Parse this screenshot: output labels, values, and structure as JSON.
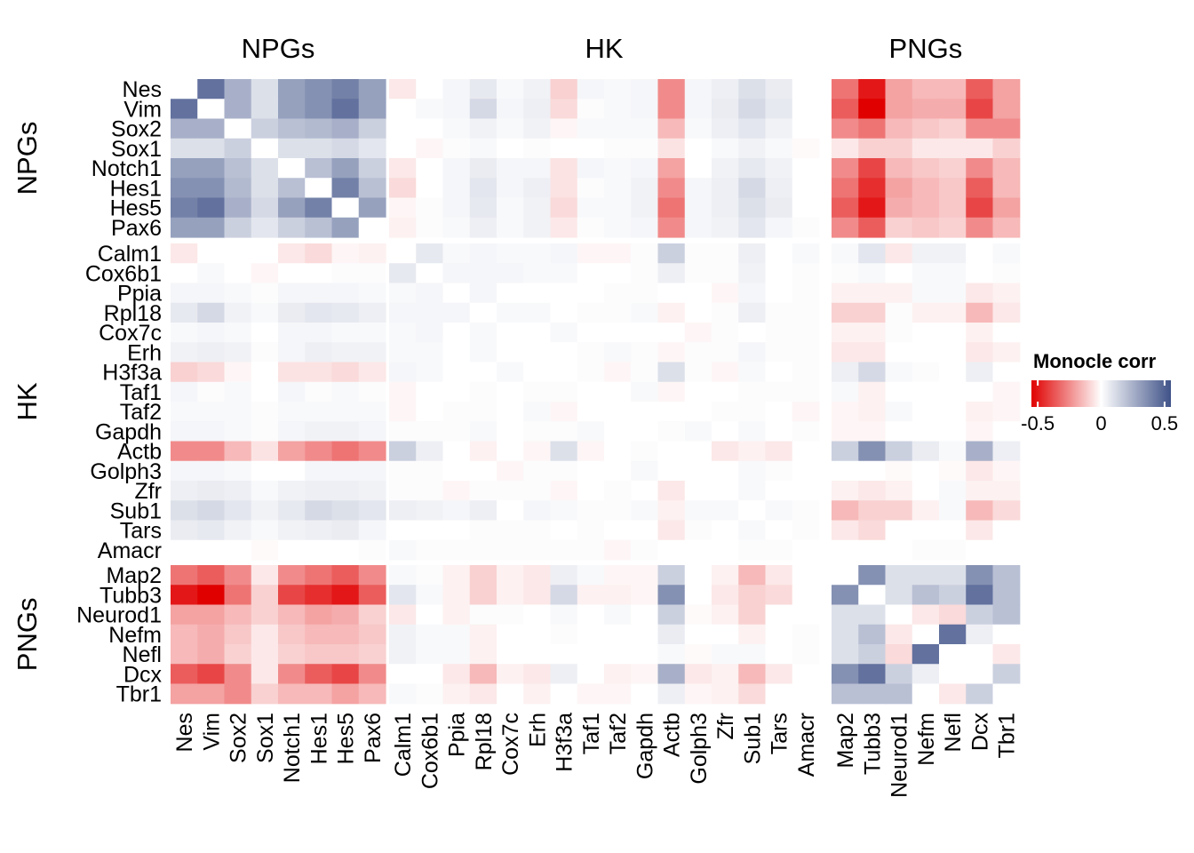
{
  "chart_data": {
    "type": "heatmap",
    "title": "",
    "genes": [
      "Nes",
      "Vim",
      "Sox2",
      "Sox1",
      "Notch1",
      "Hes1",
      "Hes5",
      "Pax6",
      "Calm1",
      "Cox6b1",
      "Ppia",
      "Rpl18",
      "Cox7c",
      "Erh",
      "H3f3a",
      "Taf1",
      "Taf2",
      "Gapdh",
      "Actb",
      "Golph3",
      "Zfr",
      "Sub1",
      "Tars",
      "Amacr",
      "Map2",
      "Tubb3",
      "Neurod1",
      "Nefm",
      "Nefl",
      "Dcx",
      "Tbr1"
    ],
    "groups": [
      {
        "name": "NPGs",
        "start": 0,
        "end": 7
      },
      {
        "name": "HK",
        "start": 8,
        "end": 23
      },
      {
        "name": "PNGs",
        "start": 24,
        "end": 30
      }
    ],
    "values": [
      [
        null,
        0.45,
        0.25,
        0.1,
        0.3,
        0.35,
        0.4,
        0.3,
        -0.05,
        0.0,
        0.03,
        0.07,
        0.02,
        0.04,
        -0.1,
        0.03,
        0.02,
        0.03,
        -0.25,
        0.03,
        0.05,
        0.1,
        0.06,
        0.0,
        -0.3,
        -0.5,
        -0.2,
        -0.15,
        -0.15,
        -0.35,
        -0.2
      ],
      [
        0.45,
        null,
        0.25,
        0.1,
        0.3,
        0.35,
        0.45,
        0.3,
        0.0,
        0.02,
        0.03,
        0.12,
        0.03,
        0.05,
        -0.08,
        0.01,
        0.02,
        0.03,
        -0.25,
        0.03,
        0.06,
        0.12,
        0.07,
        0.0,
        -0.35,
        -0.55,
        -0.2,
        -0.18,
        -0.18,
        -0.4,
        -0.2
      ],
      [
        0.25,
        0.25,
        null,
        0.15,
        0.2,
        0.22,
        0.25,
        0.15,
        0.0,
        0.0,
        0.02,
        0.04,
        0.02,
        0.04,
        -0.02,
        0.02,
        0.02,
        0.02,
        -0.15,
        0.02,
        0.05,
        0.08,
        0.04,
        0.0,
        -0.25,
        -0.3,
        -0.15,
        -0.12,
        -0.1,
        -0.25,
        -0.25
      ],
      [
        0.1,
        0.1,
        0.15,
        null,
        0.1,
        0.1,
        0.12,
        0.08,
        0.0,
        -0.02,
        0.01,
        0.02,
        0.0,
        0.01,
        0.0,
        0.0,
        0.01,
        0.01,
        -0.06,
        0.0,
        0.02,
        0.04,
        0.02,
        -0.01,
        -0.05,
        -0.1,
        -0.1,
        -0.05,
        -0.05,
        -0.05,
        -0.1
      ],
      [
        0.3,
        0.3,
        0.2,
        0.1,
        null,
        0.2,
        0.3,
        0.15,
        -0.05,
        0.0,
        0.03,
        0.06,
        0.03,
        0.03,
        -0.06,
        0.03,
        0.02,
        0.03,
        -0.2,
        0.0,
        0.04,
        0.07,
        0.04,
        0.0,
        -0.25,
        -0.4,
        -0.15,
        -0.12,
        -0.1,
        -0.25,
        -0.15
      ],
      [
        0.35,
        0.35,
        0.22,
        0.1,
        0.2,
        null,
        0.4,
        0.2,
        -0.08,
        0.0,
        0.03,
        0.08,
        0.03,
        0.05,
        -0.06,
        0.01,
        0.02,
        0.04,
        -0.25,
        0.03,
        0.05,
        0.12,
        0.05,
        0.0,
        -0.3,
        -0.45,
        -0.2,
        -0.15,
        -0.12,
        -0.35,
        -0.15
      ],
      [
        0.4,
        0.45,
        0.25,
        0.12,
        0.3,
        0.4,
        null,
        0.3,
        -0.02,
        0.01,
        0.03,
        0.07,
        0.02,
        0.04,
        -0.08,
        0.02,
        0.02,
        0.04,
        -0.3,
        0.03,
        0.05,
        0.1,
        0.06,
        0.0,
        -0.35,
        -0.5,
        -0.18,
        -0.15,
        -0.12,
        -0.4,
        -0.2
      ],
      [
        0.3,
        0.3,
        0.15,
        0.08,
        0.15,
        0.2,
        0.3,
        null,
        -0.03,
        0.01,
        0.02,
        0.05,
        0.02,
        0.04,
        -0.05,
        0.01,
        0.02,
        0.03,
        -0.25,
        0.03,
        0.04,
        0.08,
        0.03,
        0.01,
        -0.25,
        -0.35,
        -0.1,
        -0.12,
        -0.1,
        -0.25,
        -0.15
      ],
      [
        -0.05,
        0.0,
        0.0,
        0.0,
        -0.05,
        -0.08,
        -0.02,
        -0.03,
        null,
        0.07,
        0.02,
        0.03,
        0.02,
        0.02,
        0.03,
        -0.02,
        -0.02,
        0.01,
        0.15,
        0.01,
        0.01,
        0.05,
        0.0,
        0.02,
        0.02,
        0.08,
        -0.05,
        0.04,
        0.04,
        0.0,
        0.02
      ],
      [
        0.0,
        0.02,
        0.0,
        -0.02,
        0.0,
        0.0,
        0.01,
        0.01,
        0.07,
        null,
        0.03,
        0.03,
        0.03,
        0.02,
        0.02,
        0.0,
        0.0,
        0.01,
        0.05,
        0.01,
        0.01,
        0.04,
        0.0,
        0.01,
        0.01,
        0.02,
        0.0,
        0.02,
        0.02,
        0.0,
        0.01
      ],
      [
        0.03,
        0.03,
        0.02,
        0.01,
        0.03,
        0.03,
        0.03,
        0.02,
        0.02,
        0.03,
        null,
        0.03,
        0.0,
        0.0,
        0.0,
        0.0,
        0.01,
        0.01,
        0.0,
        0.0,
        -0.02,
        0.03,
        0.0,
        0.01,
        -0.03,
        -0.03,
        -0.03,
        0.02,
        0.02,
        -0.05,
        -0.03
      ],
      [
        0.07,
        0.12,
        0.04,
        0.02,
        0.06,
        0.08,
        0.07,
        0.05,
        0.03,
        0.03,
        0.03,
        null,
        0.02,
        0.02,
        0.0,
        0.01,
        0.01,
        0.02,
        -0.03,
        0.0,
        0.01,
        0.05,
        0.01,
        0.01,
        -0.1,
        -0.1,
        0.01,
        -0.03,
        -0.03,
        -0.15,
        -0.05
      ],
      [
        0.02,
        0.03,
        0.02,
        0.0,
        0.03,
        0.03,
        0.02,
        0.02,
        0.02,
        0.03,
        0.0,
        0.02,
        null,
        0.0,
        0.02,
        0.0,
        0.0,
        0.0,
        0.0,
        -0.02,
        0.01,
        0.0,
        0.01,
        0.01,
        -0.03,
        -0.03,
        0.01,
        0.0,
        0.0,
        -0.03,
        0.0
      ],
      [
        0.04,
        0.05,
        0.04,
        0.01,
        0.03,
        0.05,
        0.04,
        0.04,
        0.02,
        0.02,
        0.0,
        0.02,
        0.0,
        null,
        0.0,
        0.01,
        0.02,
        0.01,
        -0.02,
        0.01,
        0.01,
        0.03,
        0.01,
        0.01,
        -0.05,
        -0.05,
        0.0,
        0.0,
        0.0,
        -0.05,
        -0.03
      ],
      [
        -0.1,
        -0.08,
        -0.02,
        0.0,
        -0.06,
        -0.06,
        -0.08,
        -0.05,
        0.03,
        0.02,
        0.0,
        0.0,
        0.02,
        0.0,
        null,
        0.01,
        -0.02,
        0.01,
        0.1,
        0.01,
        -0.02,
        0.02,
        0.0,
        0.01,
        0.05,
        0.12,
        0.02,
        0.01,
        0.0,
        0.05,
        0.0
      ],
      [
        0.03,
        0.01,
        0.02,
        0.0,
        0.03,
        0.01,
        0.02,
        0.01,
        -0.02,
        0.0,
        0.0,
        0.01,
        0.0,
        0.01,
        0.01,
        null,
        0.0,
        0.02,
        -0.02,
        0.0,
        0.0,
        0.01,
        0.01,
        0.01,
        0.02,
        -0.03,
        0.0,
        0.0,
        0.0,
        0.0,
        -0.02
      ],
      [
        0.02,
        0.02,
        0.02,
        0.01,
        0.02,
        0.02,
        0.02,
        0.02,
        -0.02,
        0.0,
        0.01,
        0.01,
        0.0,
        0.02,
        -0.02,
        0.0,
        null,
        0.0,
        0.0,
        0.0,
        0.01,
        0.01,
        0.0,
        -0.02,
        -0.02,
        -0.03,
        0.02,
        0.0,
        0.0,
        -0.03,
        -0.02
      ],
      [
        0.03,
        0.03,
        0.02,
        0.01,
        0.03,
        0.04,
        0.04,
        0.03,
        0.01,
        0.01,
        0.01,
        0.02,
        0.0,
        0.01,
        0.01,
        0.02,
        0.0,
        null,
        0.01,
        0.02,
        0.0,
        0.02,
        0.0,
        0.01,
        -0.02,
        -0.02,
        0.0,
        0.0,
        0.0,
        -0.02,
        0.0
      ],
      [
        -0.25,
        -0.25,
        -0.15,
        -0.06,
        -0.2,
        -0.25,
        -0.3,
        -0.25,
        0.15,
        0.05,
        0.0,
        -0.03,
        0.0,
        -0.02,
        0.1,
        -0.02,
        0.0,
        0.01,
        null,
        0.0,
        -0.05,
        -0.03,
        -0.05,
        0.0,
        0.15,
        0.35,
        0.15,
        0.06,
        0.02,
        0.25,
        0.05
      ],
      [
        0.03,
        0.03,
        0.02,
        0.0,
        0.0,
        0.03,
        0.03,
        0.03,
        0.01,
        0.01,
        0.0,
        0.0,
        -0.02,
        0.01,
        0.01,
        0.0,
        0.0,
        0.02,
        0.0,
        null,
        0.0,
        0.02,
        0.01,
        0.0,
        0.0,
        0.0,
        -0.01,
        0.0,
        -0.01,
        -0.05,
        -0.02
      ],
      [
        0.05,
        0.06,
        0.05,
        0.02,
        0.04,
        0.05,
        0.05,
        0.04,
        0.01,
        0.01,
        -0.02,
        0.01,
        0.01,
        0.01,
        -0.02,
        0.0,
        0.01,
        0.0,
        -0.05,
        0.0,
        null,
        0.02,
        0.0,
        0.0,
        -0.03,
        -0.05,
        -0.03,
        0.0,
        0.02,
        -0.03,
        -0.03
      ],
      [
        0.1,
        0.12,
        0.08,
        0.04,
        0.07,
        0.12,
        0.1,
        0.08,
        0.05,
        0.04,
        0.03,
        0.05,
        0.0,
        0.03,
        0.02,
        0.01,
        0.01,
        0.02,
        -0.03,
        0.02,
        0.02,
        null,
        0.02,
        0.01,
        -0.15,
        -0.1,
        -0.1,
        -0.03,
        0.02,
        -0.15,
        -0.08
      ],
      [
        0.06,
        0.07,
        0.04,
        0.02,
        0.04,
        0.05,
        0.06,
        0.03,
        0.0,
        0.0,
        0.0,
        0.01,
        0.01,
        0.01,
        0.0,
        0.01,
        0.0,
        0.0,
        -0.05,
        0.01,
        0.0,
        0.02,
        null,
        0.01,
        -0.05,
        -0.08,
        0.0,
        0.0,
        0.0,
        -0.05,
        0.0
      ],
      [
        0.0,
        0.0,
        0.0,
        -0.01,
        0.0,
        0.0,
        0.0,
        0.01,
        0.02,
        0.01,
        0.01,
        0.01,
        0.01,
        0.01,
        0.01,
        0.01,
        -0.02,
        0.01,
        0.0,
        0.0,
        0.0,
        0.01,
        0.01,
        null,
        0.0,
        0.0,
        0.0,
        0.01,
        0.01,
        0.0,
        0.0
      ],
      [
        -0.3,
        -0.35,
        -0.25,
        -0.05,
        -0.25,
        -0.3,
        -0.35,
        -0.25,
        0.02,
        0.01,
        -0.03,
        -0.1,
        -0.03,
        -0.05,
        0.05,
        0.02,
        -0.02,
        -0.02,
        0.15,
        0.0,
        -0.03,
        -0.15,
        -0.05,
        0.0,
        null,
        0.35,
        0.1,
        0.1,
        0.1,
        0.35,
        0.2
      ],
      [
        -0.5,
        -0.55,
        -0.3,
        -0.1,
        -0.4,
        -0.45,
        -0.5,
        -0.35,
        0.08,
        0.02,
        -0.03,
        -0.1,
        -0.03,
        -0.05,
        0.12,
        -0.03,
        -0.03,
        -0.02,
        0.35,
        0.0,
        -0.05,
        -0.1,
        -0.08,
        0.0,
        0.35,
        null,
        0.1,
        0.2,
        0.15,
        0.45,
        0.2
      ],
      [
        -0.2,
        -0.2,
        -0.15,
        -0.1,
        -0.15,
        -0.2,
        -0.18,
        -0.1,
        -0.05,
        0.0,
        -0.03,
        0.01,
        0.01,
        0.0,
        0.02,
        0.0,
        0.02,
        0.0,
        0.15,
        -0.01,
        -0.03,
        -0.1,
        0.0,
        0.0,
        0.1,
        0.1,
        null,
        -0.05,
        -0.08,
        0.15,
        0.2
      ],
      [
        -0.15,
        -0.18,
        -0.12,
        -0.05,
        -0.12,
        -0.15,
        -0.15,
        -0.12,
        0.04,
        0.02,
        0.02,
        -0.03,
        0.0,
        0.0,
        0.01,
        0.0,
        0.0,
        0.0,
        0.06,
        0.0,
        0.0,
        -0.03,
        0.0,
        0.01,
        0.1,
        0.2,
        -0.05,
        null,
        0.45,
        0.05,
        0.0
      ],
      [
        -0.15,
        -0.18,
        -0.1,
        -0.05,
        -0.1,
        -0.12,
        -0.12,
        -0.1,
        0.04,
        0.02,
        0.02,
        -0.03,
        0.0,
        0.0,
        0.0,
        0.0,
        0.0,
        0.0,
        0.02,
        -0.01,
        0.02,
        0.02,
        0.0,
        0.01,
        0.1,
        0.15,
        -0.08,
        0.45,
        null,
        0.0,
        -0.05
      ],
      [
        -0.35,
        -0.4,
        -0.25,
        -0.05,
        -0.25,
        -0.35,
        -0.4,
        -0.25,
        0.0,
        0.0,
        -0.05,
        -0.15,
        -0.03,
        -0.05,
        0.05,
        0.0,
        -0.03,
        -0.02,
        0.25,
        -0.05,
        -0.03,
        -0.15,
        -0.05,
        0.0,
        0.35,
        0.45,
        0.15,
        0.05,
        0.0,
        null,
        0.15
      ],
      [
        -0.2,
        -0.2,
        -0.25,
        -0.1,
        -0.15,
        -0.15,
        -0.2,
        -0.15,
        0.02,
        0.01,
        -0.03,
        -0.05,
        0.0,
        -0.03,
        0.0,
        -0.02,
        -0.02,
        0.0,
        0.05,
        -0.02,
        -0.03,
        -0.08,
        0.0,
        0.0,
        0.2,
        0.2,
        0.2,
        0.0,
        -0.05,
        0.15,
        null
      ]
    ],
    "legend": {
      "title": "Monocle corr",
      "min": -0.55,
      "max": 0.55,
      "ticks": [
        -0.5,
        0,
        0.5
      ],
      "tick_labels": [
        "-0.5",
        "0",
        "0.5"
      ],
      "placement": "right"
    },
    "colors": {
      "negative": "#e00000",
      "neutral": "#ffffff",
      "positive": "#3f5288",
      "diagonal": "#ffffff"
    }
  }
}
